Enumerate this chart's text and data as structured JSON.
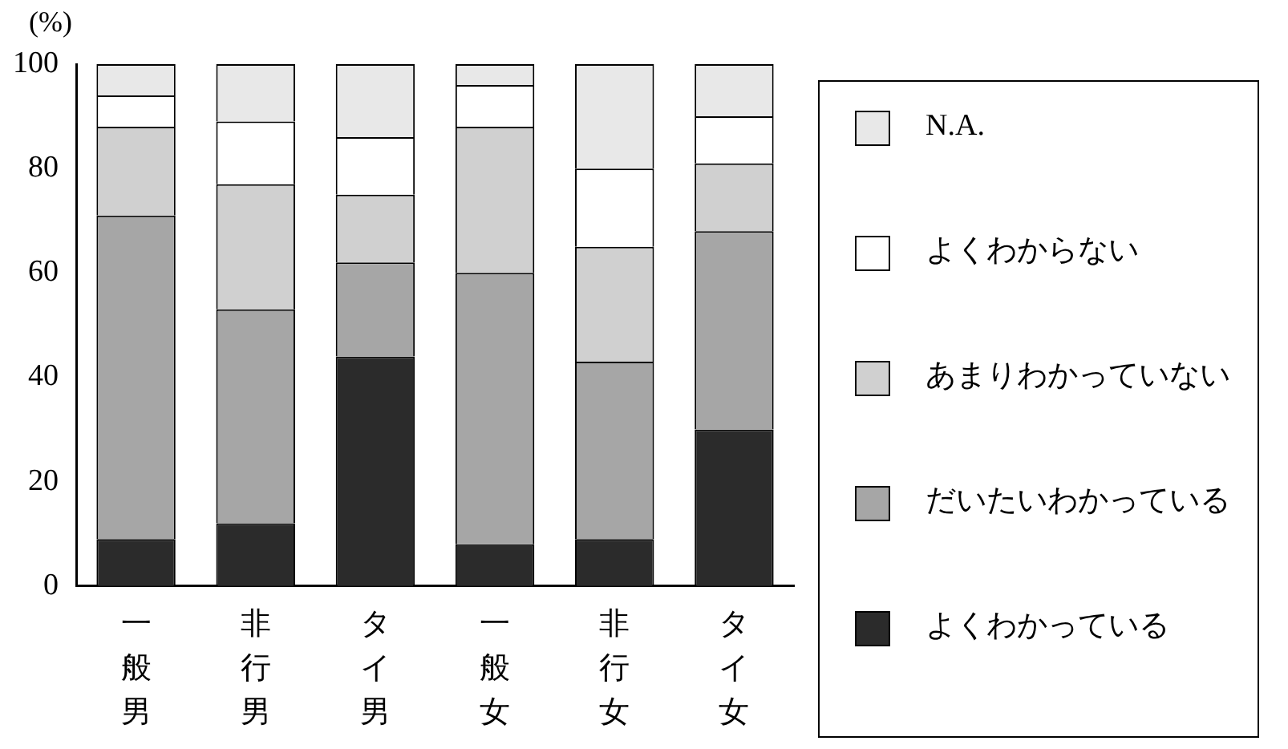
{
  "chart_data": {
    "type": "bar",
    "stacked": true,
    "ylabel": "(%)",
    "categories": [
      "一般男",
      "非行男",
      "タイ男",
      "一般女",
      "非行女",
      "タイ女"
    ],
    "series": [
      {
        "name": "よくわかっている",
        "color": "#2b2b2b",
        "values": [
          9,
          12,
          44,
          8,
          9,
          30
        ]
      },
      {
        "name": "だいたいわかっている",
        "color": "#a6a6a6",
        "values": [
          62,
          41,
          18,
          52,
          34,
          38
        ]
      },
      {
        "name": "あまりわかっていない",
        "color": "#d0d0d0",
        "values": [
          17,
          24,
          13,
          28,
          22,
          13
        ]
      },
      {
        "name": "よくわからない",
        "color": "#ffffff",
        "values": [
          6,
          12,
          11,
          8,
          15,
          9
        ]
      },
      {
        "name": "N.A.",
        "color": "#e8e8e8",
        "values": [
          6,
          11,
          14,
          4,
          20,
          10
        ]
      }
    ],
    "ylim": [
      0,
      100
    ],
    "yticks": [
      0,
      20,
      40,
      60,
      80,
      100
    ],
    "grid": false,
    "legend": "right"
  }
}
